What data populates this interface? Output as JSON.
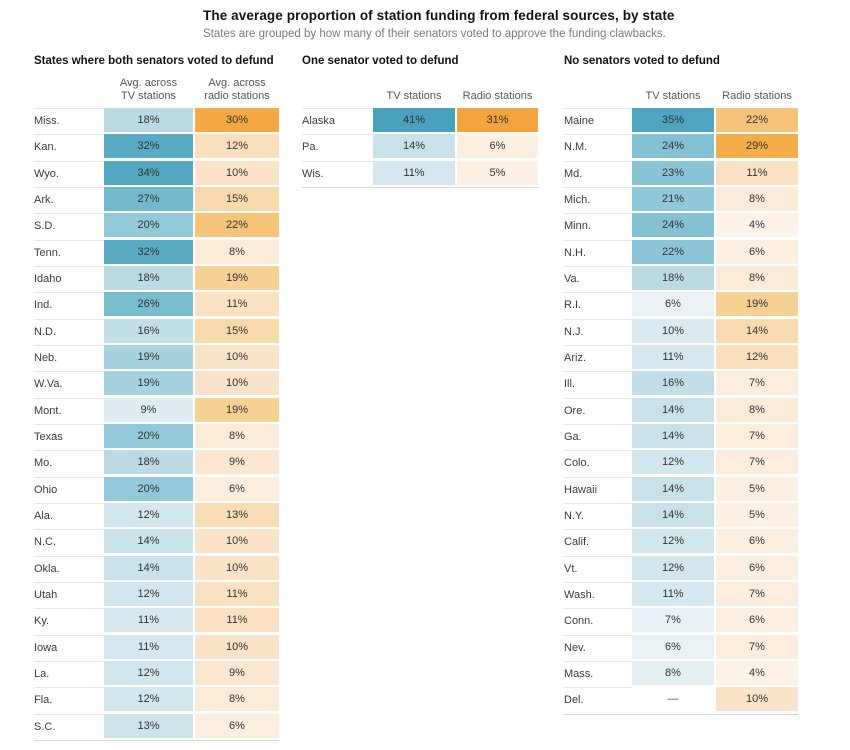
{
  "title": "The average proportion of station funding from federal sources, by state",
  "subtitle": "States are grouped by how many of their senators voted to approve the funding clawbacks.",
  "missing_value_label": "—",
  "colors": {
    "background": "#ffffff",
    "title_text": "#121212",
    "subtitle_text": "#7a7a7a",
    "cell_text": "#333333",
    "state_text": "#3b3b3b",
    "row_line": "#e7e7e7",
    "table_bottom_line": "#d9d9d9",
    "tv_scale": [
      [
        4,
        "#eef5f8"
      ],
      [
        7,
        "#e8f1f5"
      ],
      [
        10,
        "#daeaf0"
      ],
      [
        12,
        "#d1e6ed"
      ],
      [
        14,
        "#c9e2e9"
      ],
      [
        16,
        "#c2dee8"
      ],
      [
        18,
        "#bbdae4"
      ],
      [
        20,
        "#93cad9"
      ],
      [
        24,
        "#84c2d3"
      ],
      [
        27,
        "#72b9cc"
      ],
      [
        30,
        "#61afc5"
      ],
      [
        32,
        "#58abc2"
      ],
      [
        35,
        "#4fa5be"
      ],
      [
        41,
        "#49a1bb"
      ]
    ],
    "radio_scale": [
      [
        4,
        "#fdf3e8"
      ],
      [
        6,
        "#fdefe0"
      ],
      [
        8,
        "#fcebd7"
      ],
      [
        10,
        "#fae3c8"
      ],
      [
        12,
        "#f9dfbd"
      ],
      [
        16,
        "#f8d7a6"
      ],
      [
        20,
        "#f7cd8d"
      ],
      [
        22,
        "#f6c478"
      ],
      [
        24,
        "#f6c072"
      ],
      [
        27,
        "#f5b65c"
      ],
      [
        29,
        "#f4ad4a"
      ],
      [
        31,
        "#f3a43e"
      ]
    ]
  },
  "chart_data": {
    "type": "heatmap",
    "unit": "%",
    "value_columns": [
      "TV stations",
      "Radio stations"
    ],
    "groups": [
      {
        "header": "States where both senators voted to defund",
        "col_headers": [
          "Avg. across\nTV stations",
          "Avg. across\nradio stations"
        ],
        "rows": [
          {
            "state": "Miss.",
            "tv": 18,
            "radio": 30
          },
          {
            "state": "Kan.",
            "tv": 32,
            "radio": 12
          },
          {
            "state": "Wyo.",
            "tv": 34,
            "radio": 10
          },
          {
            "state": "Ark.",
            "tv": 27,
            "radio": 15
          },
          {
            "state": "S.D.",
            "tv": 20,
            "radio": 22
          },
          {
            "state": "Tenn.",
            "tv": 32,
            "radio": 8
          },
          {
            "state": "Idaho",
            "tv": 18,
            "radio": 19
          },
          {
            "state": "Ind.",
            "tv": 26,
            "radio": 11
          },
          {
            "state": "N.D.",
            "tv": 16,
            "radio": 15
          },
          {
            "state": "Neb.",
            "tv": 19,
            "radio": 10
          },
          {
            "state": "W.Va.",
            "tv": 19,
            "radio": 10
          },
          {
            "state": "Mont.",
            "tv": 9,
            "radio": 19
          },
          {
            "state": "Texas",
            "tv": 20,
            "radio": 8
          },
          {
            "state": "Mo.",
            "tv": 18,
            "radio": 9
          },
          {
            "state": "Ohio",
            "tv": 20,
            "radio": 6
          },
          {
            "state": "Ala.",
            "tv": 12,
            "radio": 13
          },
          {
            "state": "N.C.",
            "tv": 14,
            "radio": 10
          },
          {
            "state": "Okla.",
            "tv": 14,
            "radio": 10
          },
          {
            "state": "Utah",
            "tv": 12,
            "radio": 11
          },
          {
            "state": "Ky.",
            "tv": 11,
            "radio": 11
          },
          {
            "state": "Iowa",
            "tv": 11,
            "radio": 10
          },
          {
            "state": "La.",
            "tv": 12,
            "radio": 9
          },
          {
            "state": "Fla.",
            "tv": 12,
            "radio": 8
          },
          {
            "state": "S.C.",
            "tv": 13,
            "radio": 6
          }
        ]
      },
      {
        "header": "One senator voted to defund",
        "col_headers": [
          "TV stations",
          "Radio stations"
        ],
        "rows": [
          {
            "state": "Alaska",
            "tv": 41,
            "radio": 31
          },
          {
            "state": "Pa.",
            "tv": 14,
            "radio": 6
          },
          {
            "state": "Wis.",
            "tv": 11,
            "radio": 5
          }
        ]
      },
      {
        "header": "No senators voted to defund",
        "col_headers": [
          "TV stations",
          "Radio stations"
        ],
        "rows": [
          {
            "state": "Maine",
            "tv": 35,
            "radio": 22
          },
          {
            "state": "N.M.",
            "tv": 24,
            "radio": 29
          },
          {
            "state": "Md.",
            "tv": 23,
            "radio": 11
          },
          {
            "state": "Mich.",
            "tv": 21,
            "radio": 8
          },
          {
            "state": "Minn.",
            "tv": 24,
            "radio": 4
          },
          {
            "state": "N.H.",
            "tv": 22,
            "radio": 6
          },
          {
            "state": "Va.",
            "tv": 18,
            "radio": 8
          },
          {
            "state": "R.I.",
            "tv": 6,
            "radio": 19
          },
          {
            "state": "N.J.",
            "tv": 10,
            "radio": 14
          },
          {
            "state": "Ariz.",
            "tv": 11,
            "radio": 12
          },
          {
            "state": "Ill.",
            "tv": 16,
            "radio": 7
          },
          {
            "state": "Ore.",
            "tv": 14,
            "radio": 8
          },
          {
            "state": "Ga.",
            "tv": 14,
            "radio": 7
          },
          {
            "state": "Colo.",
            "tv": 12,
            "radio": 7
          },
          {
            "state": "Hawaii",
            "tv": 14,
            "radio": 5
          },
          {
            "state": "N.Y.",
            "tv": 14,
            "radio": 5
          },
          {
            "state": "Calif.",
            "tv": 12,
            "radio": 6
          },
          {
            "state": "Vt.",
            "tv": 12,
            "radio": 6
          },
          {
            "state": "Wash.",
            "tv": 11,
            "radio": 7
          },
          {
            "state": "Conn.",
            "tv": 7,
            "radio": 6
          },
          {
            "state": "Nev.",
            "tv": 6,
            "radio": 7
          },
          {
            "state": "Mass.",
            "tv": 8,
            "radio": 4
          },
          {
            "state": "Del.",
            "tv": null,
            "radio": 10
          }
        ]
      }
    ]
  }
}
